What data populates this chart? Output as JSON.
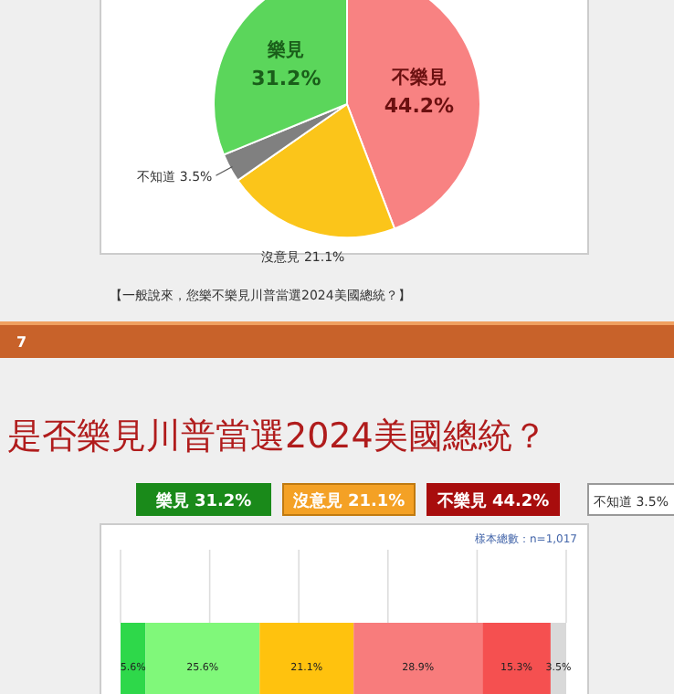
{
  "chart_data": [
    {
      "type": "pie",
      "categories": [
        "不樂見",
        "沒意見",
        "不知道",
        "樂見"
      ],
      "values": [
        44.2,
        21.1,
        3.5,
        31.2
      ],
      "colors": [
        "#f88282",
        "#fbc51a",
        "#808080",
        "#5bd65b"
      ],
      "value_labels": [
        "44.2%",
        "21.1%",
        "3.5%",
        "31.2%"
      ],
      "annotations": [
        "【一般說來，您樂不樂見川普當選2024美國總統？】",
        "7"
      ]
    },
    {
      "type": "bar",
      "title": "是否樂見川普當選2024美國總統？",
      "orientation": "horizontal",
      "stacked": true,
      "categories": [
        null
      ],
      "series": [
        {
          "color": "#2ed84a",
          "values": [
            5.6
          ],
          "value_labels": [
            "5.6%"
          ]
        },
        {
          "color": "#80f87a",
          "values": [
            25.6
          ],
          "value_labels": [
            "25.6%"
          ]
        },
        {
          "color": "#ffc20e",
          "values": [
            21.1
          ],
          "value_labels": [
            "21.1%"
          ]
        },
        {
          "color": "#f87c7c",
          "values": [
            28.9
          ],
          "value_labels": [
            "28.9%"
          ]
        },
        {
          "color": "#f55050",
          "values": [
            15.3
          ],
          "value_labels": [
            "15.3%"
          ]
        },
        {
          "color": "#d9d9d9",
          "values": [
            3.5
          ],
          "value_labels": [
            "3.5%"
          ]
        }
      ],
      "grid": "x",
      "annotations": [
        "樣本總數：n=1,017",
        "樂見 31.2%",
        "沒意見 21.1%",
        "不樂見 44.2%",
        "不知道 3.5%"
      ]
    }
  ]
}
